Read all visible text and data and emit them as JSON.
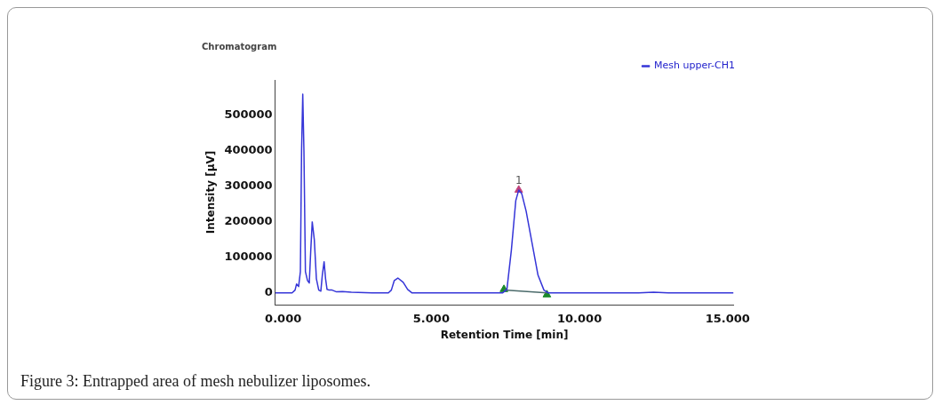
{
  "chart_data": {
    "type": "line",
    "title": "Chromatogram",
    "xlabel": "Retention Time [min]",
    "ylabel": "Intensity [μV]",
    "xlim": [
      -0.27,
      15.2
    ],
    "ylim": [
      -33000,
      600000
    ],
    "xticks": [
      {
        "value": 0,
        "label": "0.000"
      },
      {
        "value": 5,
        "label": "5.000"
      },
      {
        "value": 10,
        "label": "10.000"
      },
      {
        "value": 15,
        "label": "15.000"
      }
    ],
    "yticks": [
      0,
      100000,
      200000,
      300000,
      400000,
      500000
    ],
    "grid": false,
    "legend": "top right",
    "series": [
      {
        "name": "Mesh upper-CH1",
        "type": "line",
        "color": "#3535d8",
        "marker": "none",
        "x": [
          -0.27,
          0.3,
          0.4,
          0.45,
          0.52,
          0.58,
          0.62,
          0.66,
          0.7,
          0.75,
          0.82,
          0.88,
          0.93,
          0.98,
          1.05,
          1.12,
          1.2,
          1.27,
          1.32,
          1.38,
          1.43,
          1.48,
          1.55,
          1.65,
          1.8,
          2.0,
          2.3,
          3.0,
          3.55,
          3.65,
          3.75,
          3.87,
          4.05,
          4.2,
          4.35,
          7.4,
          7.55,
          7.7,
          7.85,
          7.95,
          8.05,
          8.2,
          8.4,
          8.6,
          8.8,
          8.95,
          12,
          12.5,
          13,
          15.2
        ],
        "values": [
          0,
          0,
          8000,
          25000,
          18000,
          60000,
          400000,
          560000,
          400000,
          60000,
          35000,
          28000,
          120000,
          200000,
          150000,
          40000,
          8000,
          5000,
          50000,
          88000,
          40000,
          10000,
          8000,
          8000,
          3000,
          4000,
          2000,
          0,
          0,
          8000,
          35000,
          42000,
          30000,
          10000,
          0,
          0,
          10000,
          120000,
          260000,
          290000,
          280000,
          230000,
          140000,
          50000,
          8000,
          0,
          0,
          2000,
          0,
          0
        ]
      },
      {
        "type": "line",
        "color": "#4a6a6a",
        "marker": "none",
        "x": [
          7.45,
          8.9
        ],
        "values": [
          8000,
          0
        ]
      },
      {
        "type": "scatter",
        "color": "#1a8a2a",
        "marker": "triangle",
        "x": [
          7.45,
          8.9
        ],
        "values": [
          10000,
          -5000
        ]
      },
      {
        "type": "scatter",
        "color": "#c0407a",
        "marker": "triangle",
        "x": [
          7.95
        ],
        "values": [
          290000
        ]
      }
    ],
    "annotations": [
      {
        "text": "1",
        "x": 7.95,
        "y": 300000
      },
      "Figure 3: Entrapped area of mesh nebulizer liposomes."
    ]
  }
}
